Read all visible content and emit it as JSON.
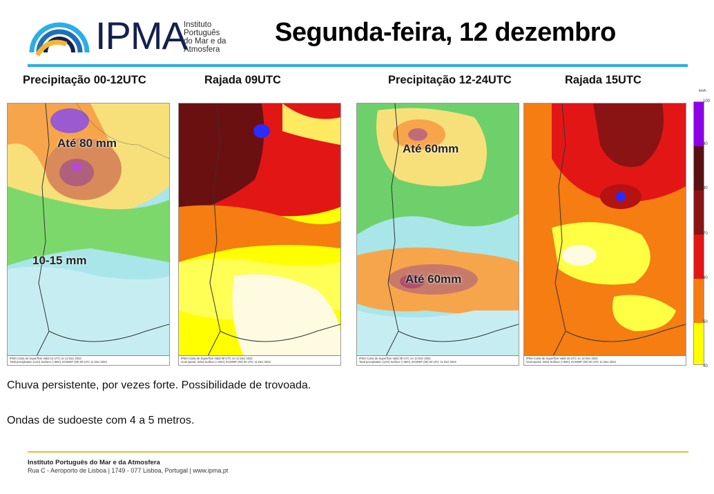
{
  "header": {
    "logo_text": "IPMA",
    "logo_sub": [
      "Instituto",
      "Português",
      "do Mar e da",
      "Atmosfera"
    ],
    "title": "Segunda-feira, 12 dezembro",
    "accent_color": "#29aee6"
  },
  "panels": [
    {
      "label": "Precipitação  00-12UTC",
      "annotations": [
        "Até 80 mm",
        "10-15 mm"
      ],
      "footer_left": "IPMA Carta de Superfície Valid 12 UTC on 12 Dez 2022",
      "footer_right": "Total precipitation (12H) Surface (+36H), ECMWF (00) 00 UTC 11 Dez 2022"
    },
    {
      "label": "Rajada  09UTC",
      "annotations": [],
      "footer_left": "IPMA Carta de Superfície Valid 09 UTC on 12 Dez 2022",
      "footer_right": "Gust speed, Wind Surface (+33H), ECMWF (00) 00 UTC 11 Dez 2022"
    },
    {
      "label": "Precipitação 12-24UTC",
      "annotations": [
        "Até 60mm",
        "Até 60mm"
      ],
      "footer_left": "IPMA Carta de Superfície Valid 00 UTC on 13 Dez 2022",
      "footer_right": "Total precipitation (12H) Surface (+48H), ECMWF (00) 00 UTC 11 Dez 2022"
    },
    {
      "label": "Rajada 15UTC",
      "annotations": [],
      "footer_left": "IPMA Carta de Superfície Valid 15 UTC on 12 Dez 2022",
      "footer_right": "Gust speed, Wind Surface (+39H), ECMWF (00) 00 UTC 11 Dez 2022"
    }
  ],
  "legend": {
    "unit": "km/h",
    "ticks": [
      "100",
      "90",
      "80",
      "70",
      "60",
      "50",
      "40"
    ],
    "colors": [
      "#8e00e8",
      "#5a1010",
      "#8a1414",
      "#e31616",
      "#f57d11",
      "#ffff00"
    ]
  },
  "body": {
    "line1": "Chuva persistente, por vezes forte. Possibilidade de trovoada.",
    "line2": "Ondas de sudoeste com 4 a 5 metros."
  },
  "footer": {
    "org": "Instituto Português do Mar e da Atmosfera",
    "address": "Rua C - Aeroporto de Lisboa | 1749 - 077 Lisboa, Portugal | www.ipma.pt",
    "bar_color": "#f4b632"
  }
}
